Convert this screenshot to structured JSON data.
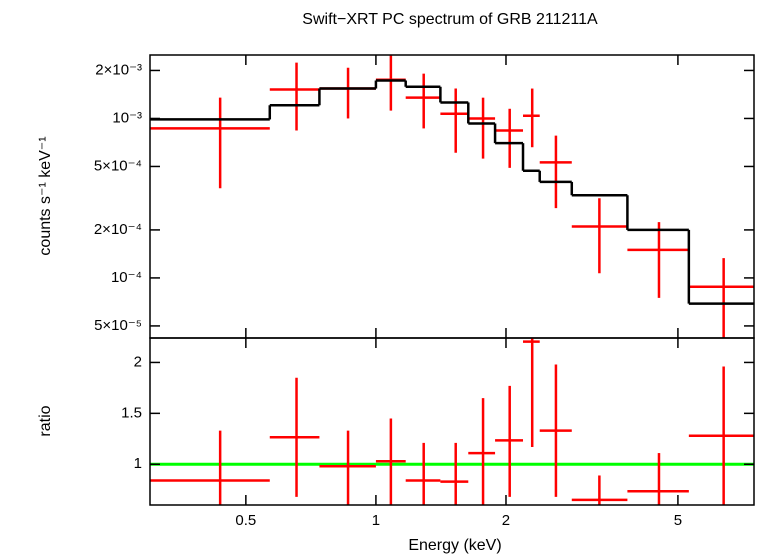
{
  "chart_data": [
    {
      "type": "errorbar",
      "title": "Swift−XRT PC spectrum of GRB 211211A",
      "ylabel": "counts s⁻¹ keV⁻¹",
      "xlog": true,
      "ylog": true,
      "xlim": [
        0.3,
        7.5
      ],
      "ylim": [
        4.2e-05,
        0.0025
      ],
      "yticks": [
        {
          "value": 5e-05,
          "label": "5×10⁻⁵"
        },
        {
          "value": 0.0001,
          "label": "10⁻⁴"
        },
        {
          "value": 0.0002,
          "label": "2×10⁻⁴"
        },
        {
          "value": 0.0005,
          "label": "5×10⁻⁴"
        },
        {
          "value": 0.001,
          "label": "10⁻³"
        },
        {
          "value": 0.002,
          "label": "2×10⁻³"
        }
      ],
      "series": [
        {
          "color": "#ff0000",
          "x": [
            0.436,
            0.655,
            0.862,
            1.083,
            1.29,
            1.53,
            1.77,
            2.04,
            2.3,
            2.61,
            3.29,
            4.52,
            6.38
          ],
          "xmin": [
            0.3,
            0.568,
            0.74,
            1.0,
            1.172,
            1.41,
            1.636,
            1.887,
            2.19,
            2.394,
            2.84,
            3.82,
            5.3
          ],
          "xmax": [
            0.568,
            0.74,
            1.0,
            1.172,
            1.41,
            1.636,
            1.887,
            2.19,
            2.394,
            2.84,
            3.82,
            5.3,
            7.5
          ],
          "values": [
            0.000866,
            0.00152,
            0.00154,
            0.00175,
            0.00135,
            0.00107,
            0.001,
            0.00084,
            0.00104,
            0.00053,
            0.00021,
            0.00015,
            8.8e-05
          ],
          "ymin": [
            0.000365,
            0.00084,
            0.001,
            0.00112,
            0.000866,
            0.00061,
            0.00056,
            0.00049,
            0.00066,
            0.000274,
            0.000107,
            7.5e-05,
            4.2e-05
          ],
          "ymax": [
            0.00135,
            0.00224,
            0.00208,
            0.00248,
            0.00191,
            0.00154,
            0.00135,
            0.00115,
            0.00154,
            0.00078,
            0.000316,
            0.000224,
            0.000133
          ]
        },
        {
          "type": "step",
          "color": "#000000",
          "bins": [
            0.3,
            0.568,
            0.74,
            1.0,
            1.172,
            1.41,
            1.636,
            1.887,
            2.19,
            2.394,
            2.84,
            3.82,
            5.3,
            7.5
          ],
          "values": [
            0.000986,
            0.00121,
            0.00154,
            0.00173,
            0.00158,
            0.00126,
            0.00093,
            0.0007,
            0.00047,
            0.0004,
            0.00033,
            0.0002,
            6.9e-05
          ]
        }
      ]
    },
    {
      "type": "errorbar",
      "ylabel": "ratio",
      "xlabel": "Energy (keV)",
      "xlog": true,
      "xlim": [
        0.3,
        7.5
      ],
      "xticks": [
        0.5,
        1,
        2,
        5
      ],
      "ylim": [
        0.6,
        2.24
      ],
      "yticks": [
        1,
        1.5,
        2
      ],
      "hline": 1,
      "hline_color": "#00ff00",
      "series": [
        {
          "color": "#ff0000",
          "x": [
            0.436,
            0.655,
            0.862,
            1.083,
            1.29,
            1.53,
            1.77,
            2.04,
            2.3,
            2.61,
            3.29,
            4.52,
            6.38
          ],
          "xmin": [
            0.3,
            0.568,
            0.74,
            1.0,
            1.172,
            1.41,
            1.636,
            1.887,
            2.19,
            2.394,
            2.84,
            3.82,
            5.3
          ],
          "xmax": [
            0.568,
            0.74,
            1.0,
            1.172,
            1.41,
            1.636,
            1.887,
            2.19,
            2.394,
            2.84,
            3.82,
            5.3,
            7.5
          ],
          "values": [
            0.84,
            1.265,
            0.98,
            1.03,
            0.84,
            0.83,
            1.11,
            1.235,
            2.205,
            1.33,
            0.65,
            0.735,
            1.28
          ],
          "ymin": [
            0.6,
            0.68,
            0.6,
            0.6,
            0.6,
            0.6,
            0.6,
            0.68,
            1.17,
            0.68,
            0.6,
            0.6,
            0.6
          ],
          "ymax": [
            1.33,
            1.85,
            1.33,
            1.45,
            1.21,
            1.21,
            1.65,
            1.77,
            2.24,
            1.98,
            0.89,
            1.11,
            1.96
          ]
        }
      ]
    }
  ]
}
